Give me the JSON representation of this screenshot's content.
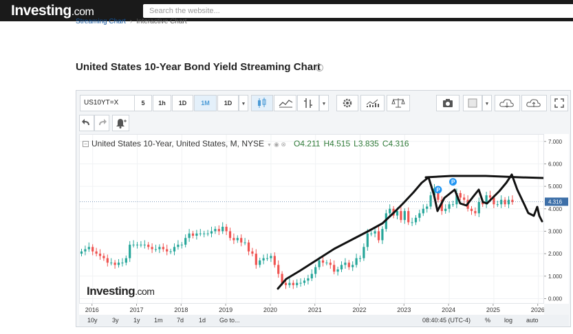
{
  "header": {
    "logo_main": "Investing",
    "logo_tld": ".com",
    "search_placeholder": "Search the website..."
  },
  "breadcrumb": {
    "item1": "Streaming Chart",
    "item2": "Interactive Chart"
  },
  "page_title": "United States 10-Year Bond Yield Streaming Chart",
  "toolbar": {
    "symbol": "US10YT=X",
    "intervals": [
      "5",
      "1h",
      "1D",
      "1M",
      "1D"
    ],
    "active_interval": "1M"
  },
  "legend": {
    "name": "United States 10-Year, United States, M, NYSE",
    "open": "O4.211",
    "high": "H4.515",
    "low": "L3.835",
    "close": "C4.316"
  },
  "watermark": {
    "main": "Investing",
    "tld": ".com"
  },
  "bottom_bar": {
    "ranges": [
      "10y",
      "3y",
      "1y",
      "1m",
      "7d",
      "1d",
      "Go to..."
    ],
    "time": "08:40:45 (UTC-4)",
    "percent": "%",
    "log": "log",
    "auto": "auto"
  },
  "chart_data": {
    "type": "candlestick",
    "x_ticks": [
      "2016",
      "2017",
      "2018",
      "2019",
      "2020",
      "2021",
      "2022",
      "2023",
      "2024",
      "2025",
      "2026"
    ],
    "y_ticks": [
      "7.000",
      "6.000",
      "5.000",
      "4.000",
      "3.000",
      "2.000",
      "1.000",
      "0.000"
    ],
    "ylim": [
      -0.2,
      7.3
    ],
    "last_price": "4.316",
    "last_value": 4.316,
    "colors": {
      "up": "#26a69a",
      "down": "#ef5350",
      "last_line": "#5b7fa8",
      "last_badge": "#3d6fa8"
    },
    "monthly_closes_from_2015_10": [
      2.1,
      2.2,
      2.3,
      2.1,
      2.0,
      1.9,
      1.8,
      1.6,
      1.6,
      1.5,
      1.6,
      1.6,
      1.8,
      2.4,
      2.4,
      2.4,
      2.4,
      2.4,
      2.3,
      2.2,
      2.2,
      2.3,
      2.2,
      2.1,
      2.1,
      2.3,
      2.4,
      2.4,
      2.7,
      2.9,
      2.8,
      2.9,
      2.9,
      2.9,
      2.9,
      3.0,
      3.1,
      3.0,
      3.2,
      3.0,
      2.7,
      2.6,
      2.7,
      2.5,
      2.5,
      2.1,
      2.0,
      1.5,
      1.7,
      1.8,
      1.8,
      1.9,
      1.5,
      1.1,
      0.7,
      0.6,
      0.7,
      0.6,
      0.7,
      0.7,
      0.8,
      0.9,
      1.1,
      1.4,
      1.7,
      1.6,
      1.6,
      1.5,
      1.2,
      1.3,
      1.5,
      1.6,
      1.4,
      1.5,
      1.8,
      1.8,
      2.3,
      2.9,
      2.9,
      3.0,
      2.6,
      3.1,
      3.8,
      4.0,
      3.7,
      3.9,
      3.5,
      3.9,
      3.4,
      3.4,
      3.6,
      3.8,
      4.0,
      4.1,
      4.6,
      4.9,
      4.4,
      3.9,
      4.0,
      4.2,
      4.2,
      4.7,
      4.5,
      4.4,
      4.0,
      3.9,
      3.8,
      4.3,
      4.2,
      4.6,
      4.5,
      4.2,
      4.2,
      4.4,
      4.2,
      4.4,
      4.3
    ],
    "annotations": [
      "P",
      "P"
    ]
  }
}
